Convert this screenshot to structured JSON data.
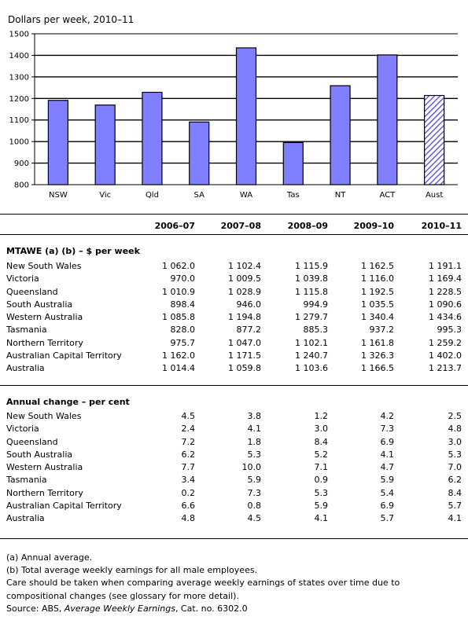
{
  "chart_data": {
    "type": "bar",
    "title": "Dollars per week, 2010–11",
    "categories": [
      "NSW",
      "Vic",
      "Qld",
      "SA",
      "WA",
      "Tas",
      "NT",
      "ACT",
      "Aust"
    ],
    "values": [
      1191.1,
      1169.4,
      1228.5,
      1090.6,
      1434.6,
      995.3,
      1259.2,
      1402.0,
      1213.7
    ],
    "ylim": [
      800,
      1500
    ],
    "yticks": [
      800,
      900,
      1000,
      1100,
      1200,
      1300,
      1400,
      1500
    ],
    "grid": true,
    "colors": {
      "bar": "#7f7fff",
      "total_hatch": "#6060e0",
      "edge": "#000000"
    },
    "hatched_category": "Aust"
  },
  "table": {
    "years": [
      "2006–07",
      "2007–08",
      "2008–09",
      "2009–10",
      "2010–11"
    ],
    "sections": [
      {
        "title": "MTAWE (a) (b) – $ per week",
        "rows": [
          {
            "label": "New South Wales",
            "values": [
              "1 062.0",
              "1 102.4",
              "1 115.9",
              "1 162.5",
              "1 191.1"
            ]
          },
          {
            "label": "Victoria",
            "values": [
              "970.0",
              "1 009.5",
              "1 039.8",
              "1 116.0",
              "1 169.4"
            ]
          },
          {
            "label": "Queensland",
            "values": [
              "1 010.9",
              "1 028.9",
              "1 115.8",
              "1 192.5",
              "1 228.5"
            ]
          },
          {
            "label": "South Australia",
            "values": [
              "898.4",
              "946.0",
              "994.9",
              "1 035.5",
              "1 090.6"
            ]
          },
          {
            "label": "Western Australia",
            "values": [
              "1 085.8",
              "1 194.8",
              "1 279.7",
              "1 340.4",
              "1 434.6"
            ]
          },
          {
            "label": "Tasmania",
            "values": [
              "828.0",
              "877.2",
              "885.3",
              "937.2",
              "995.3"
            ]
          },
          {
            "label": "Northern Territory",
            "values": [
              "975.7",
              "1 047.0",
              "1 102.1",
              "1 161.8",
              "1 259.2"
            ]
          },
          {
            "label": "Australian Capital Territory",
            "values": [
              "1 162.0",
              "1 171.5",
              "1 240.7",
              "1 326.3",
              "1 402.0"
            ]
          },
          {
            "label": "Australia",
            "values": [
              "1 014.4",
              "1 059.8",
              "1 103.6",
              "1 166.5",
              "1 213.7"
            ]
          }
        ]
      },
      {
        "title": "Annual change – per cent",
        "rows": [
          {
            "label": "New South Wales",
            "values": [
              "4.5",
              "3.8",
              "1.2",
              "4.2",
              "2.5"
            ]
          },
          {
            "label": "Victoria",
            "values": [
              "2.4",
              "4.1",
              "3.0",
              "7.3",
              "4.8"
            ]
          },
          {
            "label": "Queensland",
            "values": [
              "7.2",
              "1.8",
              "8.4",
              "6.9",
              "3.0"
            ]
          },
          {
            "label": "South Australia",
            "values": [
              "6.2",
              "5.3",
              "5.2",
              "4.1",
              "5.3"
            ]
          },
          {
            "label": "Western Australia",
            "values": [
              "7.7",
              "10.0",
              "7.1",
              "4.7",
              "7.0"
            ]
          },
          {
            "label": "Tasmania",
            "values": [
              "3.4",
              "5.9",
              "0.9",
              "5.9",
              "6.2"
            ]
          },
          {
            "label": "Northern Territory",
            "values": [
              "0.2",
              "7.3",
              "5.3",
              "5.4",
              "8.4"
            ]
          },
          {
            "label": "Australian Capital Territory",
            "values": [
              "6.6",
              "0.8",
              "5.9",
              "6.9",
              "5.7"
            ]
          },
          {
            "label": "Australia",
            "values": [
              "4.8",
              "4.5",
              "4.1",
              "5.7",
              "4.1"
            ]
          }
        ]
      }
    ]
  },
  "notes": {
    "a": "(a) Annual average.",
    "b": "(b) Total average weekly earnings for all male employees.",
    "care": "Care should be taken when comparing average weekly earnings of states over time due to compositional changes (see glossary for more detail).",
    "source_prefix": "Source: ABS, ",
    "source_title": "Average Weekly Earnings",
    "source_suffix": ", Cat. no. 6302.0"
  }
}
